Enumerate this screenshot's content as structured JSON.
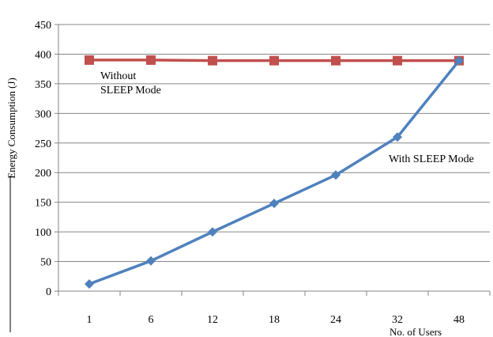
{
  "chart_data": {
    "type": "line",
    "categories": [
      "1",
      "6",
      "12",
      "18",
      "24",
      "32",
      "48"
    ],
    "ylabel": "Energy Consumption (J)",
    "xlabel": "No. of Users",
    "ylim": [
      0,
      450
    ],
    "yticks": [
      0,
      50,
      100,
      150,
      200,
      250,
      300,
      350,
      400,
      450
    ],
    "grid": "horizontal",
    "legend": "none",
    "series": [
      {
        "name": "Without SLEEP Mode",
        "values": [
          390,
          390,
          389,
          389,
          389,
          389,
          389
        ],
        "color": "#c0504d",
        "marker": "square"
      },
      {
        "name": "With SLEEP Mode",
        "values": [
          12,
          51,
          100,
          148,
          196,
          260,
          389
        ],
        "color": "#4f81bd",
        "marker": "diamond"
      }
    ],
    "annotations": [
      {
        "lines": [
          "Without",
          "SLEEP Mode"
        ]
      },
      {
        "lines": [
          "With SLEEP Mode"
        ]
      }
    ]
  }
}
